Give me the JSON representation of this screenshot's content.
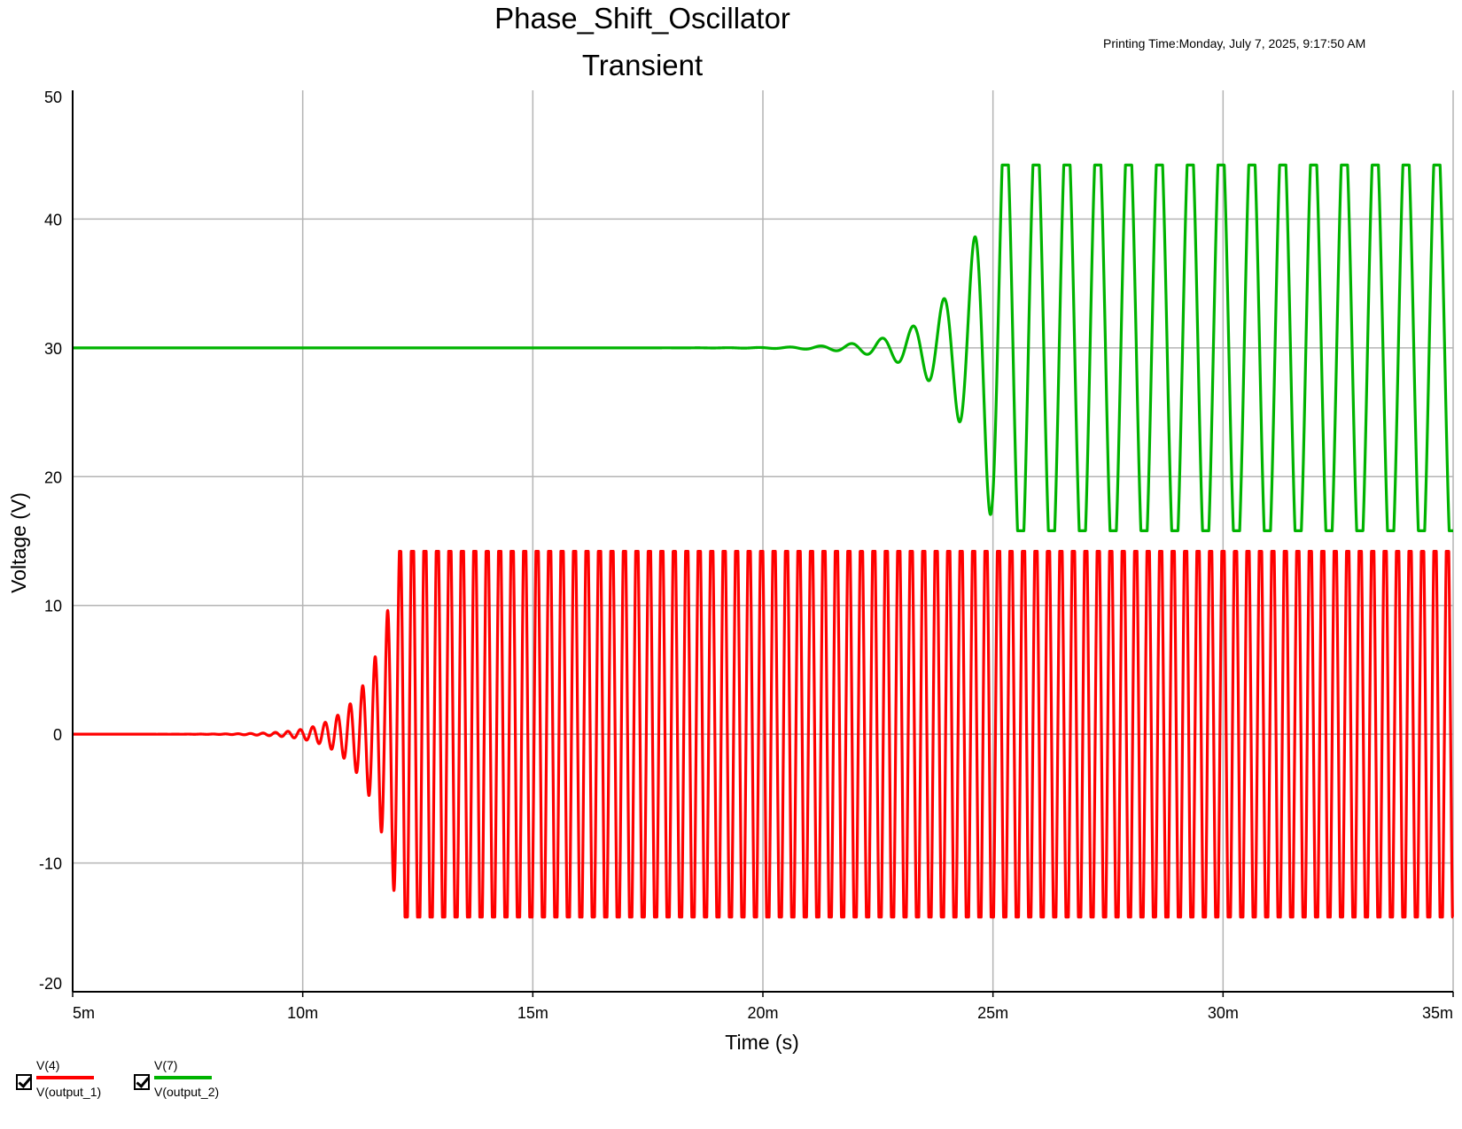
{
  "header": {
    "title": "Phase_Shift_Oscillator",
    "subtitle": "Transient",
    "printing_time": "Printing Time:Monday, July 7, 2025, 9:17:50 AM"
  },
  "legend": [
    {
      "name": "V(4)",
      "label": "V(output_1)",
      "color": "#ff0000",
      "checked": true
    },
    {
      "name": "V(7)",
      "label": "V(output_2)",
      "color": "#00b300",
      "checked": true
    }
  ],
  "chart_data": {
    "type": "line",
    "title": "Phase_Shift_Oscillator",
    "subtitle": "Transient",
    "xlabel": "Time (s)",
    "ylabel": "Voltage (V)",
    "xlim": [
      0.005,
      0.035
    ],
    "ylim": [
      -20,
      50
    ],
    "xticks": [
      0.005,
      0.01,
      0.015,
      0.02,
      0.025,
      0.03,
      0.035
    ],
    "xtick_labels": [
      "5m",
      "10m",
      "15m",
      "20m",
      "25m",
      "30m",
      "35m"
    ],
    "yticks": [
      -20,
      -10,
      0,
      10,
      20,
      30,
      40,
      50
    ],
    "ytick_labels": [
      "-20",
      "-10",
      "0",
      "10",
      "20",
      "30",
      "40",
      "50"
    ],
    "grid": true,
    "series": [
      {
        "name": "V(4)",
        "legend_label": "V(output_1)",
        "color": "#ff0000",
        "offset_V": 0,
        "amplitude_V": 14.2,
        "period_s": 0.000271,
        "growth_start_s": 0.0082,
        "saturation_s": 0.0122,
        "saturated_low_V": -14.2,
        "saturated_high_V": 14.2
      },
      {
        "name": "V(7)",
        "legend_label": "V(output_2)",
        "color": "#00b300",
        "offset_V": 30,
        "amplitude_V": 14.2,
        "period_s": 0.00067,
        "growth_start_s": 0.0195,
        "saturation_s": 0.0252,
        "saturated_low_V": 15.8,
        "saturated_high_V": 44.2
      }
    ]
  }
}
